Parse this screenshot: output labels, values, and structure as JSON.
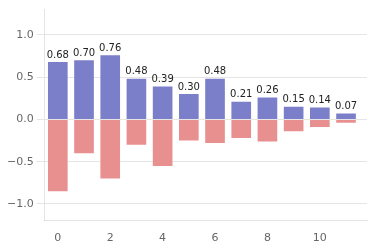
{
  "chart_data": {
    "type": "bar",
    "x": [
      0,
      1,
      2,
      3,
      4,
      5,
      6,
      7,
      8,
      9,
      10,
      11
    ],
    "series": [
      {
        "color": "#7b7ec8",
        "values": [
          0.68,
          0.7,
          0.76,
          0.48,
          0.39,
          0.3,
          0.48,
          0.21,
          0.26,
          0.15,
          0.14,
          0.07
        ],
        "value_labels": [
          "0.68",
          "0.70",
          "0.76",
          "0.48",
          "0.39",
          "0.30",
          "0.48",
          "0.21",
          "0.26",
          "0.15",
          "0.14",
          "0.07"
        ],
        "data_labels": true
      },
      {
        "color": "#e89090",
        "values": [
          -0.85,
          -0.4,
          -0.7,
          -0.3,
          -0.55,
          -0.25,
          -0.28,
          -0.22,
          -0.26,
          -0.14,
          -0.09,
          -0.04
        ]
      }
    ],
    "xlim": [
      -0.5,
      11.8
    ],
    "xticks": [
      0,
      2,
      4,
      6,
      8,
      10
    ],
    "ylim": [
      -1.2,
      1.3
    ],
    "yticks": [
      {
        "value": -1.0,
        "label": "−1.0"
      },
      {
        "value": -0.5,
        "label": "−0.5"
      },
      {
        "value": 0.0,
        "label": "0.0"
      },
      {
        "value": 0.5,
        "label": "0.5"
      },
      {
        "value": 1.0,
        "label": "1.0"
      }
    ],
    "grid": true
  }
}
